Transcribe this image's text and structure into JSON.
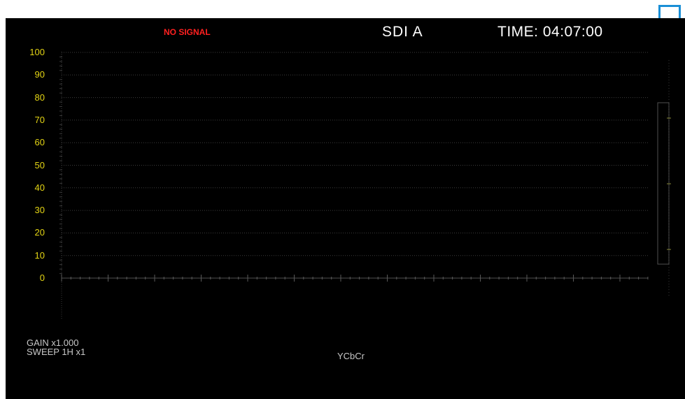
{
  "status": {
    "no_signal": "NO SIGNAL",
    "input": "SDI A",
    "time": "TIME: 04:07:00"
  },
  "waveform": {
    "scale_labels": [
      "100",
      "90",
      "80",
      "70",
      "60",
      "50",
      "40",
      "30",
      "20",
      "10",
      "0"
    ],
    "gain": "GAIN x1.000",
    "sweep": "SWEEP 1H x1",
    "format": "YCbCr"
  },
  "colors": {
    "background": "#000000",
    "scale": "#e3d414",
    "warning": "#ff2020",
    "edit_icon": "#2dbf2d",
    "highlight": "#1a8fd6"
  },
  "icons": {
    "edit": "pencil-icon"
  }
}
